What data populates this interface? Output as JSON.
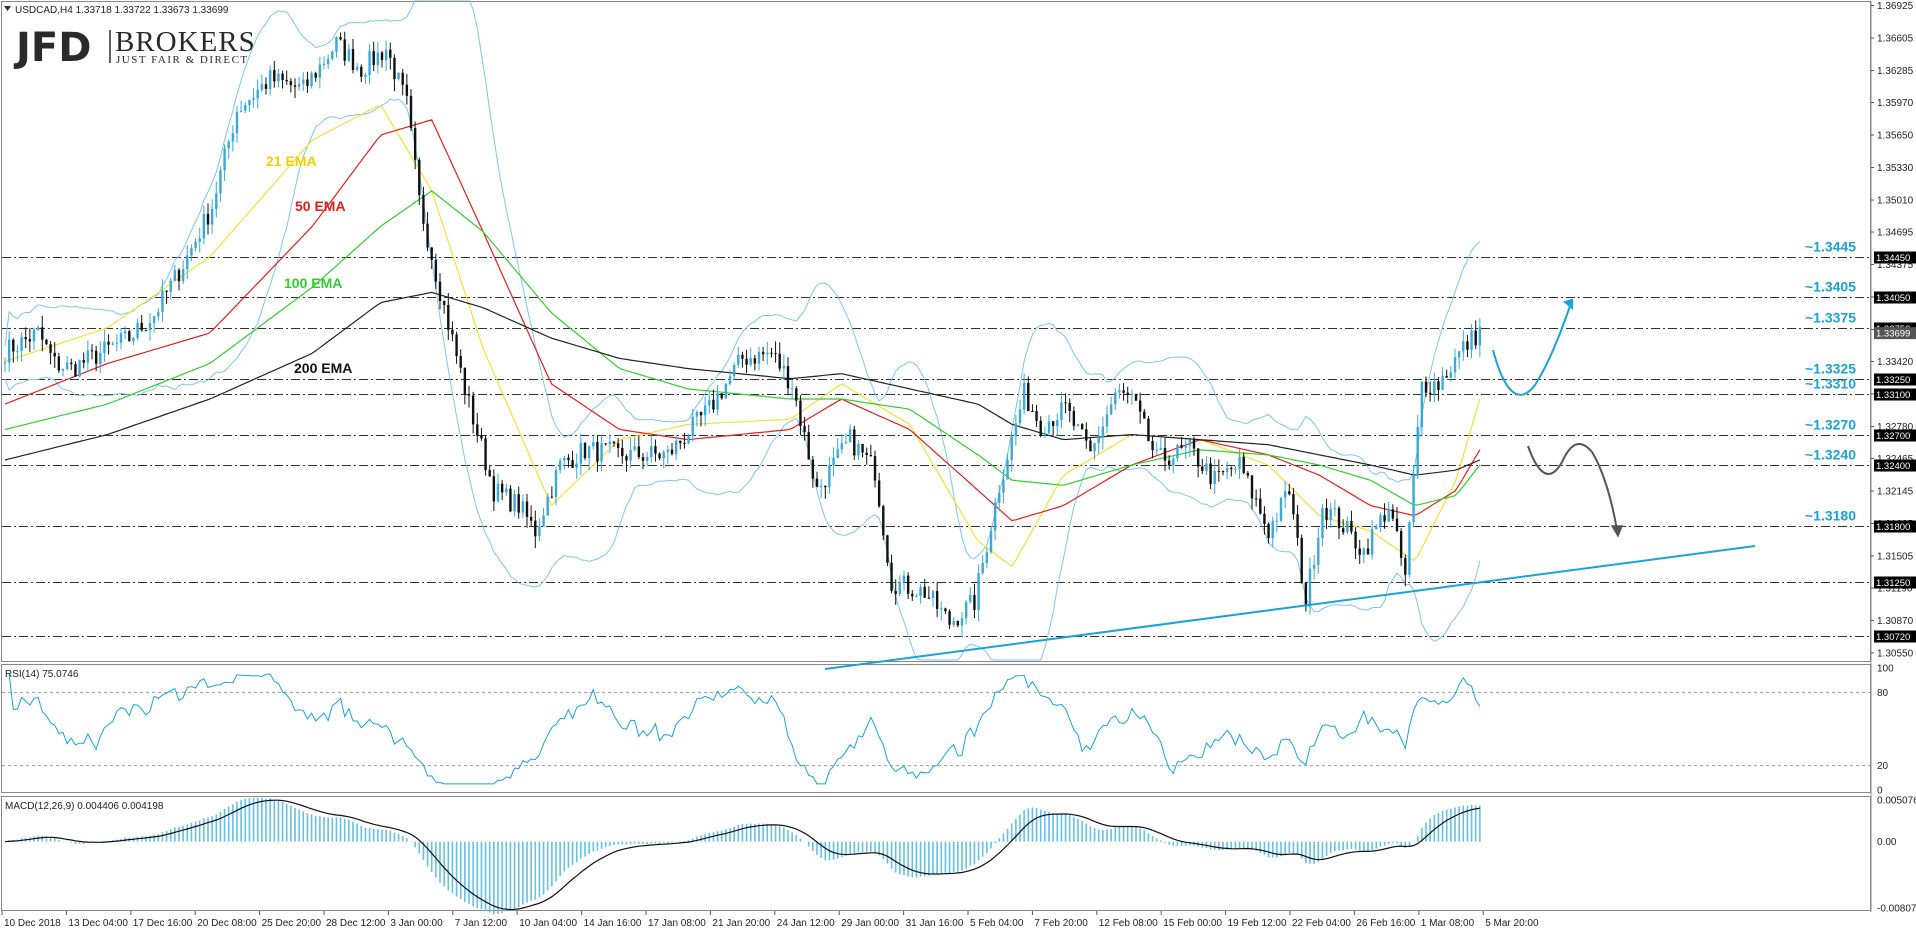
{
  "header": {
    "symbol_info": "USDCAD,H4  1.33718 1.33722 1.33673 1.33699",
    "menu_icon": "triangle-down-icon"
  },
  "logo": {
    "brand": "JFD",
    "name": "BROKERS",
    "tagline": "JUST FAIR & DIRECT"
  },
  "colors": {
    "background": "#ffffff",
    "bull_candle": "#3aa8d8",
    "bear_candle": "#111111",
    "ema21": "#f2e23a",
    "ema50": "#e02020",
    "ema100": "#33cc33",
    "ema200": "#222222",
    "bollinger": "#7fc6ea",
    "levels": "#333333",
    "trendline": "#1aa3d4",
    "arrow_up": "#1aa3d4",
    "arrow_down": "#555555",
    "level_label": "#1aa3d4",
    "rsi_line": "#1aa3d4",
    "macd_hist": "#66bfe6",
    "macd_signal": "#111111"
  },
  "indicator_labels": {
    "ema21": "21 EMA",
    "ema50": "50 EMA",
    "ema100": "100 EMA",
    "ema200": "200 EMA"
  },
  "chart_data": {
    "type": "line",
    "title": "USDCAD,H4",
    "ohlc_header": {
      "open": 1.33718,
      "high": 1.33722,
      "low": 1.33673,
      "close": 1.33699
    },
    "price_axis": {
      "ticks": [
        "1.36925",
        "1.36605",
        "1.36285",
        "1.35970",
        "1.35650",
        "1.35330",
        "1.35010",
        "1.34695",
        "1.34375",
        "1.34055",
        "1.33735",
        "1.33420",
        "1.33100",
        "1.32780",
        "1.32465",
        "1.32145",
        "1.31825",
        "1.31505",
        "1.31190",
        "1.30870",
        "1.30550"
      ],
      "ylim": [
        1.3048,
        1.3695
      ]
    },
    "time_axis": {
      "labels": [
        "10 Dec 2018",
        "13 Dec 04:00",
        "17 Dec 16:00",
        "20 Dec 08:00",
        "25 Dec 20:00",
        "28 Dec 12:00",
        "3 Jan 00:00",
        "7 Jan 12:00",
        "10 Jan 04:00",
        "14 Jan 16:00",
        "17 Jan 08:00",
        "21 Jan 20:00",
        "24 Jan 12:00",
        "29 Jan 00:00",
        "31 Jan 16:00",
        "5 Feb 04:00",
        "7 Feb 20:00",
        "12 Feb 08:00",
        "15 Feb 00:00",
        "19 Feb 12:00",
        "22 Feb 04:00",
        "26 Feb 16:00",
        "1 Mar 08:00",
        "5 Mar 20:00"
      ]
    },
    "levels": [
      {
        "value": 1.3445,
        "label": "~1.3445",
        "box": "1.34450"
      },
      {
        "value": 1.3405,
        "label": "~1.3405",
        "box": "1.34050"
      },
      {
        "value": 1.3375,
        "label": "~1.3375",
        "box": "1.33750"
      },
      {
        "value": 1.3325,
        "label": "~1.3325",
        "box": "1.33250"
      },
      {
        "value": 1.331,
        "label": "~1.3310",
        "box": "1.33100"
      },
      {
        "value": 1.327,
        "label": "~1.3270",
        "box": "1.32700"
      },
      {
        "value": 1.324,
        "label": "~1.3240",
        "box": "1.32400"
      },
      {
        "value": 1.318,
        "label": "~1.3180",
        "box": "1.31800"
      },
      {
        "value": 1.3125,
        "label": "",
        "box": "1.31250"
      },
      {
        "value": 1.3072,
        "label": "",
        "box": "1.30720"
      }
    ],
    "current_price_box": "1.33699",
    "series": [
      {
        "name": "21 EMA",
        "values": [
          [
            0,
            1.3342
          ],
          [
            30,
            1.3375
          ],
          [
            60,
            1.3445
          ],
          [
            90,
            1.356
          ],
          [
            110,
            1.3595
          ],
          [
            125,
            1.351
          ],
          [
            140,
            1.3355
          ],
          [
            160,
            1.32
          ],
          [
            180,
            1.3265
          ],
          [
            200,
            1.328
          ],
          [
            230,
            1.3285
          ],
          [
            245,
            1.332
          ],
          [
            265,
            1.328
          ],
          [
            285,
            1.3165
          ],
          [
            295,
            1.314
          ],
          [
            310,
            1.323
          ],
          [
            330,
            1.327
          ],
          [
            350,
            1.3265
          ],
          [
            370,
            1.324
          ],
          [
            385,
            1.319
          ],
          [
            400,
            1.3175
          ],
          [
            413,
            1.3145
          ],
          [
            425,
            1.3225
          ],
          [
            432,
            1.3305
          ]
        ]
      },
      {
        "name": "50 EMA",
        "values": [
          [
            0,
            1.33
          ],
          [
            30,
            1.334
          ],
          [
            60,
            1.337
          ],
          [
            90,
            1.3475
          ],
          [
            110,
            1.3565
          ],
          [
            125,
            1.358
          ],
          [
            140,
            1.347
          ],
          [
            160,
            1.332
          ],
          [
            180,
            1.3275
          ],
          [
            200,
            1.3265
          ],
          [
            230,
            1.3275
          ],
          [
            245,
            1.3305
          ],
          [
            265,
            1.3275
          ],
          [
            285,
            1.3215
          ],
          [
            295,
            1.3185
          ],
          [
            310,
            1.32
          ],
          [
            330,
            1.324
          ],
          [
            350,
            1.3265
          ],
          [
            370,
            1.325
          ],
          [
            385,
            1.323
          ],
          [
            400,
            1.32
          ],
          [
            413,
            1.319
          ],
          [
            425,
            1.3215
          ],
          [
            432,
            1.3255
          ]
        ]
      },
      {
        "name": "100 EMA",
        "values": [
          [
            0,
            1.3275
          ],
          [
            30,
            1.33
          ],
          [
            60,
            1.334
          ],
          [
            90,
            1.3415
          ],
          [
            110,
            1.3475
          ],
          [
            125,
            1.351
          ],
          [
            140,
            1.347
          ],
          [
            160,
            1.339
          ],
          [
            180,
            1.3335
          ],
          [
            200,
            1.3315
          ],
          [
            230,
            1.3305
          ],
          [
            245,
            1.3305
          ],
          [
            265,
            1.3295
          ],
          [
            285,
            1.325
          ],
          [
            295,
            1.3225
          ],
          [
            310,
            1.322
          ],
          [
            330,
            1.324
          ],
          [
            350,
            1.3255
          ],
          [
            370,
            1.325
          ],
          [
            385,
            1.324
          ],
          [
            400,
            1.3225
          ],
          [
            413,
            1.32
          ],
          [
            425,
            1.321
          ],
          [
            432,
            1.324
          ]
        ]
      },
      {
        "name": "200 EMA",
        "values": [
          [
            0,
            1.3245
          ],
          [
            30,
            1.327
          ],
          [
            60,
            1.3305
          ],
          [
            90,
            1.335
          ],
          [
            110,
            1.34
          ],
          [
            125,
            1.341
          ],
          [
            140,
            1.3395
          ],
          [
            160,
            1.3365
          ],
          [
            180,
            1.3345
          ],
          [
            200,
            1.3335
          ],
          [
            230,
            1.3325
          ],
          [
            245,
            1.333
          ],
          [
            265,
            1.3315
          ],
          [
            285,
            1.33
          ],
          [
            295,
            1.328
          ],
          [
            310,
            1.3265
          ],
          [
            330,
            1.327
          ],
          [
            350,
            1.3265
          ],
          [
            370,
            1.326
          ],
          [
            385,
            1.325
          ],
          [
            400,
            1.324
          ],
          [
            413,
            1.323
          ],
          [
            425,
            1.3235
          ],
          [
            432,
            1.3245
          ]
        ]
      }
    ],
    "rsi": {
      "label": "RSI(14) 75.0746",
      "levels": [
        100,
        80,
        20,
        0
      ],
      "last": 75.0746
    },
    "macd": {
      "label": "MACD(12,26,9) 0.004406 0.004198",
      "ticks": [
        "0.005076",
        "0.00",
        "-0.008074"
      ],
      "main": 0.004406,
      "signal": 0.004198
    },
    "grid": false,
    "legend": "none"
  }
}
